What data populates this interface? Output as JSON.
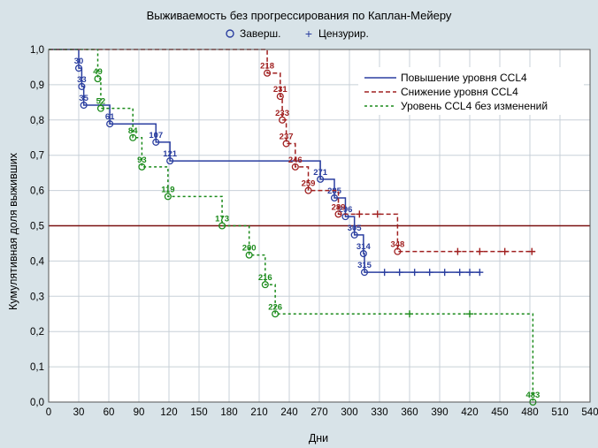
{
  "chart_data": {
    "type": "line",
    "subtype": "kaplan-meier step",
    "title": "Выживаемость без прогрессирования по Каплан-Мейеру",
    "xlabel": "Дни",
    "ylabel": "Кумулятивная доля выживших",
    "xlim": [
      0,
      540
    ],
    "ylim": [
      0,
      1.0
    ],
    "xticks": [
      "0",
      "30",
      "60",
      "90",
      "120",
      "150",
      "180",
      "210",
      "240",
      "270",
      "300",
      "330",
      "360",
      "390",
      "420",
      "450",
      "480",
      "510",
      "540"
    ],
    "yticks": [
      "0,0",
      "0,1",
      "0,2",
      "0,3",
      "0,4",
      "0,5",
      "0,6",
      "0,7",
      "0,8",
      "0,9",
      "1,0"
    ],
    "marker_legend": {
      "complete": "Заверш.",
      "censored": "Цензурир."
    },
    "reference_line": {
      "y": 0.5,
      "color": "#7a1010"
    },
    "series": [
      {
        "name": "Повышение уровня CCL4",
        "color": "#2b3fa0",
        "dash": "solid",
        "start": 1.0,
        "events": [
          {
            "x": 30,
            "y": 0.947,
            "label": "30"
          },
          {
            "x": 33,
            "y": 0.895,
            "label": "33"
          },
          {
            "x": 35,
            "y": 0.842,
            "label": "35"
          },
          {
            "x": 61,
            "y": 0.789,
            "label": "61"
          },
          {
            "x": 107,
            "y": 0.737,
            "label": "107"
          },
          {
            "x": 121,
            "y": 0.684,
            "label": "121"
          },
          {
            "x": 271,
            "y": 0.632,
            "label": "271"
          },
          {
            "x": 285,
            "y": 0.579,
            "label": "285"
          },
          {
            "x": 296,
            "y": 0.526,
            "label": "296"
          },
          {
            "x": 305,
            "y": 0.474,
            "label": "305"
          },
          {
            "x": 314,
            "y": 0.421,
            "label": "314"
          },
          {
            "x": 315,
            "y": 0.368,
            "label": "315"
          }
        ],
        "censored": [
          335,
          350,
          365,
          380,
          395,
          410,
          420,
          430
        ],
        "end": 430
      },
      {
        "name": "Снижение уровня CCL4",
        "color": "#a02020",
        "dash": "5,3",
        "start": 1.0,
        "events": [
          {
            "x": 218,
            "y": 0.933,
            "label": "218"
          },
          {
            "x": 231,
            "y": 0.867,
            "label": "231"
          },
          {
            "x": 233,
            "y": 0.8,
            "label": "233"
          },
          {
            "x": 237,
            "y": 0.733,
            "label": "237"
          },
          {
            "x": 246,
            "y": 0.667,
            "label": "246"
          },
          {
            "x": 259,
            "y": 0.6,
            "label": "259"
          },
          {
            "x": 289,
            "y": 0.533,
            "label": "289"
          },
          {
            "x": 348,
            "y": 0.427,
            "label": "348"
          }
        ],
        "censored": [
          310,
          328,
          408,
          430,
          455,
          482
        ],
        "end": 485
      },
      {
        "name": "Уровень CCL4 без изменений",
        "color": "#1a8a1a",
        "dash": "3,3",
        "start": 1.0,
        "events": [
          {
            "x": 49,
            "y": 0.917,
            "label": "49"
          },
          {
            "x": 52,
            "y": 0.833,
            "label": "52"
          },
          {
            "x": 84,
            "y": 0.75,
            "label": "84"
          },
          {
            "x": 93,
            "y": 0.667,
            "label": "93"
          },
          {
            "x": 119,
            "y": 0.583,
            "label": "119"
          },
          {
            "x": 173,
            "y": 0.5,
            "label": "173"
          },
          {
            "x": 200,
            "y": 0.417,
            "label": "200"
          },
          {
            "x": 216,
            "y": 0.333,
            "label": "216"
          },
          {
            "x": 226,
            "y": 0.25,
            "label": "226"
          },
          {
            "x": 483,
            "y": 0.0,
            "label": "483"
          }
        ],
        "censored": [
          360,
          420
        ],
        "end": 483
      }
    ]
  }
}
